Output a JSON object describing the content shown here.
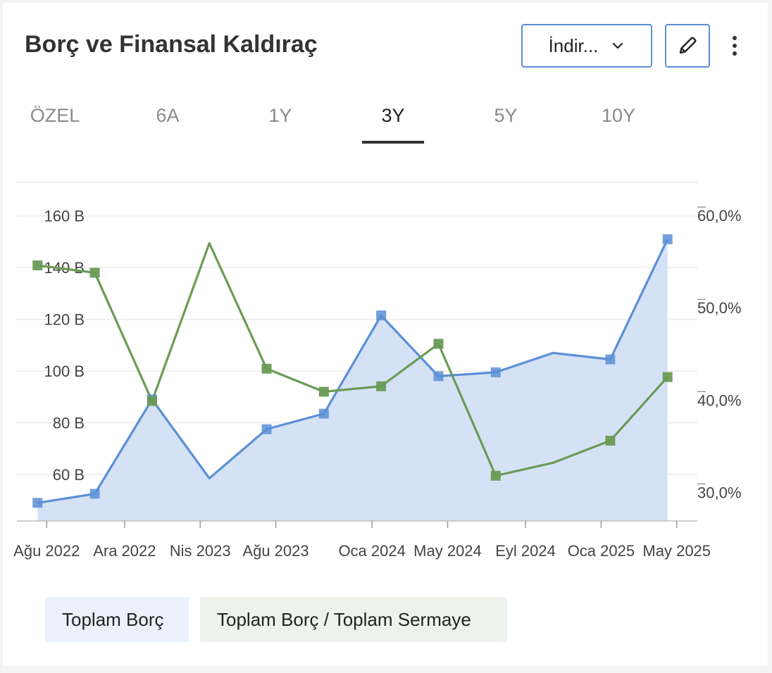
{
  "header": {
    "title": "Borç ve Finansal Kaldıraç",
    "download_label": "İndir...",
    "pencil_icon": "pencil-icon",
    "more_icon": "more-vertical-icon",
    "chevron_icon": "chevron-down-icon"
  },
  "tabs": [
    {
      "label": "ÖZEL",
      "active": false
    },
    {
      "label": "6A",
      "active": false
    },
    {
      "label": "1Y",
      "active": false
    },
    {
      "label": "3Y",
      "active": true
    },
    {
      "label": "5Y",
      "active": false
    },
    {
      "label": "10Y",
      "active": false
    }
  ],
  "colors": {
    "debt": "#5b8fd6",
    "debt_fill": "#d5e2f6",
    "ratio": "#6a9b55",
    "grid": "#ececec",
    "axis_text": "#444444"
  },
  "legend": {
    "debt_label": "Toplam Borç",
    "ratio_label": "Toplam Borç / Toplam Sermaye"
  },
  "chart_data": {
    "type": "line",
    "title": "Borç ve Finansal Kaldıraç",
    "x_tick_labels": [
      "Ağu 2022",
      "Ara 2022",
      "Nis 2023",
      "Ağu 2023",
      "Oca 2024",
      "May 2024",
      "Eyl 2024",
      "Oca 2025",
      "May 2025"
    ],
    "x_range": [
      2022.45,
      2025.42
    ],
    "x_ticks": [
      2022.58,
      2022.92,
      2023.25,
      2023.58,
      2024.0,
      2024.33,
      2024.67,
      2025.0,
      2025.33
    ],
    "y_left": {
      "ticks": [
        60,
        80,
        100,
        120,
        140,
        160
      ],
      "tick_labels": [
        "60 B",
        "80 B",
        "100 B",
        "120 B",
        "140 B",
        "160 B"
      ],
      "range": [
        42,
        173
      ]
    },
    "y_right": {
      "ticks": [
        30,
        40,
        50,
        60
      ],
      "tick_labels": [
        "30,0%",
        "40,0%",
        "50,0%",
        "60,0%"
      ],
      "range": [
        26.9,
        63.6
      ]
    },
    "series": [
      {
        "name": "Toplam Borç",
        "axis": "left",
        "type": "area",
        "points": [
          {
            "x": 2022.54,
            "y": 49.0,
            "marker": true
          },
          {
            "x": 2022.79,
            "y": 52.5,
            "marker": true
          },
          {
            "x": 2023.04,
            "y": 89.0,
            "marker": true
          },
          {
            "x": 2023.29,
            "y": 58.5,
            "marker": false
          },
          {
            "x": 2023.54,
            "y": 77.5,
            "marker": true
          },
          {
            "x": 2023.79,
            "y": 83.5,
            "marker": true
          },
          {
            "x": 2024.04,
            "y": 121.5,
            "marker": true
          },
          {
            "x": 2024.29,
            "y": 98.0,
            "marker": true
          },
          {
            "x": 2024.54,
            "y": 99.5,
            "marker": true
          },
          {
            "x": 2024.79,
            "y": 107.0,
            "marker": false
          },
          {
            "x": 2025.04,
            "y": 104.5,
            "marker": true
          },
          {
            "x": 2025.29,
            "y": 151.0,
            "marker": true
          }
        ]
      },
      {
        "name": "Toplam Borç / Toplam Sermaye",
        "axis": "right",
        "type": "line",
        "points": [
          {
            "x": 2022.54,
            "y": 54.6,
            "marker": true
          },
          {
            "x": 2022.79,
            "y": 53.8,
            "marker": true
          },
          {
            "x": 2023.04,
            "y": 39.9,
            "marker": true
          },
          {
            "x": 2023.29,
            "y": 57.0,
            "marker": false
          },
          {
            "x": 2023.54,
            "y": 43.4,
            "marker": true
          },
          {
            "x": 2023.79,
            "y": 40.9,
            "marker": true
          },
          {
            "x": 2024.04,
            "y": 41.5,
            "marker": true
          },
          {
            "x": 2024.29,
            "y": 46.1,
            "marker": true
          },
          {
            "x": 2024.54,
            "y": 31.8,
            "marker": true
          },
          {
            "x": 2024.79,
            "y": 33.2,
            "marker": false
          },
          {
            "x": 2025.04,
            "y": 35.6,
            "marker": true
          },
          {
            "x": 2025.29,
            "y": 42.5,
            "marker": true
          }
        ]
      }
    ]
  }
}
